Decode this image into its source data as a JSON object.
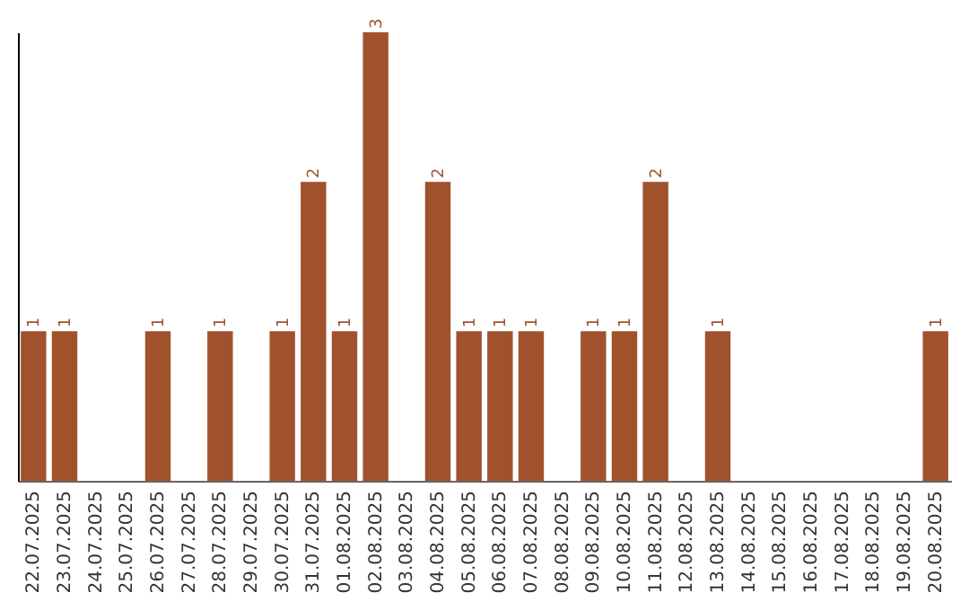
{
  "chart_data": {
    "type": "bar",
    "categories": [
      "22.07.2025",
      "23.07.2025",
      "24.07.2025",
      "25.07.2025",
      "26.07.2025",
      "27.07.2025",
      "28.07.2025",
      "29.07.2025",
      "30.07.2025",
      "31.07.2025",
      "01.08.2025",
      "02.08.2025",
      "03.08.2025",
      "04.08.2025",
      "05.08.2025",
      "06.08.2025",
      "07.08.2025",
      "08.08.2025",
      "09.08.2025",
      "10.08.2025",
      "11.08.2025",
      "12.08.2025",
      "13.08.2025",
      "14.08.2025",
      "15.08.2025",
      "16.08.2025",
      "17.08.2025",
      "18.08.2025",
      "19.08.2025",
      "20.08.2025"
    ],
    "values": [
      1,
      1,
      0,
      0,
      1,
      0,
      1,
      0,
      1,
      2,
      1,
      3,
      0,
      2,
      1,
      1,
      1,
      0,
      1,
      1,
      2,
      0,
      1,
      0,
      0,
      0,
      0,
      0,
      0,
      1
    ],
    "value_labels": [
      "1",
      "1",
      null,
      null,
      "1",
      null,
      "1",
      null,
      "1",
      "2",
      "1",
      "3",
      null,
      "2",
      "1",
      "1",
      "1",
      null,
      "1",
      "1",
      "2",
      null,
      "1",
      null,
      null,
      null,
      null,
      null,
      null,
      "1"
    ],
    "color": "#a0522d",
    "grid": false,
    "tick_labels": "x"
  }
}
